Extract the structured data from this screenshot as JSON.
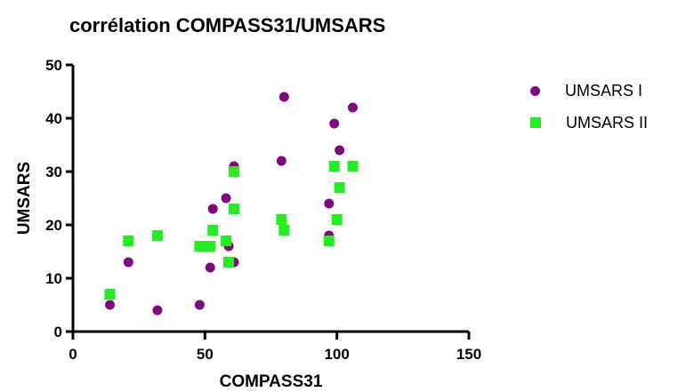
{
  "chart_data": {
    "type": "scatter",
    "title": "corrélation COMPASS31/UMSARS",
    "xlabel": "COMPASS31",
    "ylabel": "UMSARS",
    "xlim": [
      0,
      150
    ],
    "ylim": [
      0,
      50
    ],
    "xticks": [
      "0",
      "50",
      "100",
      "150"
    ],
    "yticks": [
      "0",
      "10",
      "20",
      "30",
      "40",
      "50"
    ],
    "grid": false,
    "legend_position": "right",
    "series": [
      {
        "name": "UMSARS I",
        "marker": "circle",
        "color": "#7d0a7d",
        "points": [
          {
            "x": 14,
            "y": 5
          },
          {
            "x": 21,
            "y": 13
          },
          {
            "x": 32,
            "y": 4
          },
          {
            "x": 48,
            "y": 5
          },
          {
            "x": 52,
            "y": 12
          },
          {
            "x": 53,
            "y": 23
          },
          {
            "x": 58,
            "y": 25
          },
          {
            "x": 59,
            "y": 16
          },
          {
            "x": 61,
            "y": 31
          },
          {
            "x": 61,
            "y": 13
          },
          {
            "x": 79,
            "y": 32
          },
          {
            "x": 80,
            "y": 44
          },
          {
            "x": 97,
            "y": 24
          },
          {
            "x": 97,
            "y": 18
          },
          {
            "x": 99,
            "y": 39
          },
          {
            "x": 100,
            "y": 21
          },
          {
            "x": 101,
            "y": 34
          },
          {
            "x": 106,
            "y": 42
          }
        ]
      },
      {
        "name": "UMSARS II",
        "marker": "square",
        "color": "#22ee22",
        "points": [
          {
            "x": 14,
            "y": 7
          },
          {
            "x": 21,
            "y": 17
          },
          {
            "x": 32,
            "y": 18
          },
          {
            "x": 48,
            "y": 16
          },
          {
            "x": 50,
            "y": 16
          },
          {
            "x": 52,
            "y": 16
          },
          {
            "x": 53,
            "y": 19
          },
          {
            "x": 58,
            "y": 17
          },
          {
            "x": 59,
            "y": 13
          },
          {
            "x": 61,
            "y": 30
          },
          {
            "x": 61,
            "y": 23
          },
          {
            "x": 79,
            "y": 21
          },
          {
            "x": 80,
            "y": 19
          },
          {
            "x": 97,
            "y": 17
          },
          {
            "x": 99,
            "y": 31
          },
          {
            "x": 100,
            "y": 21
          },
          {
            "x": 101,
            "y": 27
          },
          {
            "x": 106,
            "y": 31
          }
        ]
      }
    ]
  }
}
